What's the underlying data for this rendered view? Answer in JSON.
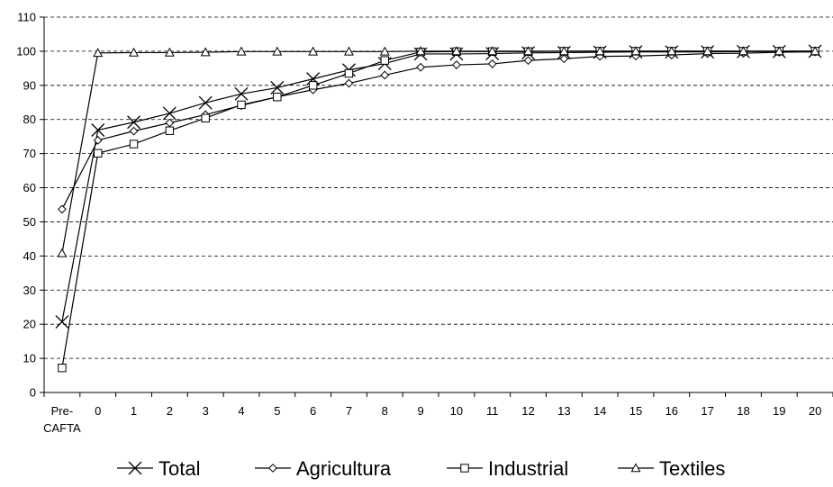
{
  "chart_data": {
    "type": "line",
    "title": "",
    "xlabel": "",
    "ylabel": "",
    "categories": [
      "Pre-\nCAFTA",
      "0",
      "1",
      "2",
      "3",
      "4",
      "5",
      "6",
      "7",
      "8",
      "9",
      "10",
      "11",
      "12",
      "13",
      "14",
      "15",
      "16",
      "17",
      "18",
      "19",
      "20"
    ],
    "ylim": [
      0,
      110
    ],
    "yticks": [
      0,
      10,
      20,
      30,
      40,
      50,
      60,
      70,
      80,
      90,
      100,
      110
    ],
    "grid": "horizontal-dashed",
    "legend_position": "bottom",
    "series": [
      {
        "name": "Total",
        "marker": "x",
        "color": "#000000",
        "values": [
          20.7,
          76.9,
          79.2,
          81.8,
          84.9,
          87.5,
          89.3,
          91.9,
          94.5,
          96.4,
          99.2,
          99.2,
          99.3,
          99.5,
          99.6,
          99.7,
          99.8,
          99.8,
          99.8,
          99.9,
          99.9,
          100
        ]
      },
      {
        "name": "Agricultura",
        "marker": "diamond",
        "color": "#000000",
        "values": [
          53.7,
          73.9,
          76.6,
          79.0,
          81.4,
          84.1,
          86.6,
          88.7,
          90.6,
          93.0,
          95.3,
          96.0,
          96.3,
          97.3,
          97.8,
          98.5,
          98.6,
          98.9,
          99.3,
          99.4,
          99.7,
          99.8
        ]
      },
      {
        "name": "Industrial",
        "marker": "square",
        "color": "#000000",
        "values": [
          7.2,
          70.1,
          72.8,
          76.7,
          80.4,
          84.3,
          86.6,
          90.0,
          93.5,
          97.3,
          99.8,
          99.9,
          99.9,
          99.9,
          100,
          100,
          100,
          100,
          100,
          100,
          100,
          100
        ]
      },
      {
        "name": "Textiles",
        "marker": "triangle",
        "color": "#000000",
        "values": [
          40.8,
          99.5,
          99.6,
          99.6,
          99.7,
          99.9,
          99.9,
          99.9,
          99.9,
          99.9,
          100,
          100,
          100,
          100,
          100,
          100,
          100,
          100,
          100,
          100,
          100,
          100
        ]
      }
    ]
  }
}
